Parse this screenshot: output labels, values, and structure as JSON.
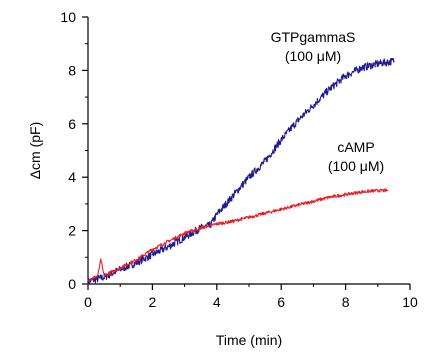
{
  "chart_data": {
    "type": "line",
    "xlabel": "Time (min)",
    "ylabel": "Δcm (pF)",
    "xlim": [
      0,
      10
    ],
    "ylim": [
      0,
      10
    ],
    "xticks": [
      "0",
      "2",
      "4",
      "6",
      "8",
      "10"
    ],
    "yticks": [
      "0",
      "2",
      "4",
      "6",
      "8",
      "10"
    ],
    "grid": false,
    "annotations": [
      {
        "id": "gtp",
        "lines": [
          "GTPgammaS",
          "(100 μM)"
        ]
      },
      {
        "id": "camp",
        "lines": [
          "cAMP",
          "(100 μM)"
        ]
      }
    ],
    "series": [
      {
        "color": "#1f1c8f",
        "x": [
          0,
          0.5,
          1,
          1.5,
          2,
          2.5,
          3,
          3.5,
          3.8,
          4,
          4.5,
          5,
          5.5,
          6,
          6.5,
          7,
          7.5,
          8,
          8.5,
          9,
          9.5
        ],
        "y": [
          0.1,
          0.25,
          0.55,
          0.8,
          1.1,
          1.4,
          1.75,
          2.1,
          2.2,
          2.6,
          3.3,
          4.0,
          4.6,
          5.4,
          6.1,
          6.7,
          7.3,
          7.8,
          8.1,
          8.25,
          8.35
        ]
      },
      {
        "color": "#e81f26",
        "x": [
          0,
          0.3,
          0.4,
          0.5,
          1,
          1.5,
          2,
          2.5,
          3,
          3.5,
          4,
          4.5,
          5,
          5.5,
          6,
          6.5,
          7,
          7.5,
          8,
          8.5,
          9,
          9.3
        ],
        "y": [
          0.15,
          0.3,
          0.9,
          0.3,
          0.6,
          0.9,
          1.3,
          1.6,
          1.9,
          2.1,
          2.25,
          2.35,
          2.5,
          2.65,
          2.8,
          2.95,
          3.1,
          3.25,
          3.35,
          3.45,
          3.5,
          3.5
        ]
      }
    ]
  }
}
